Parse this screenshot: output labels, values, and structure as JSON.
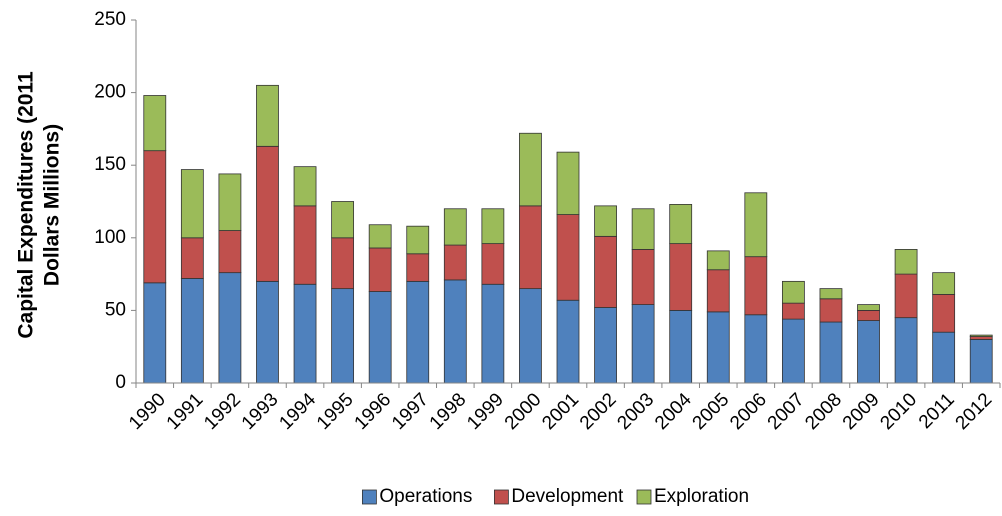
{
  "chart_data": {
    "type": "stacked_bar",
    "ylabel": [
      "Capital Expenditures (2011",
      "Dollars Millions)"
    ],
    "categories": [
      "1990",
      "1991",
      "1992",
      "1993",
      "1994",
      "1995",
      "1996",
      "1997",
      "1998",
      "1999",
      "2000",
      "2001",
      "2002",
      "2003",
      "2004",
      "2005",
      "2006",
      "2007",
      "2008",
      "2009",
      "2010",
      "2011",
      "2012"
    ],
    "series": [
      {
        "name": "Operations",
        "color": "#4f81bd",
        "values": [
          69,
          72,
          76,
          70,
          68,
          65,
          63,
          70,
          71,
          68,
          65,
          57,
          52,
          54,
          50,
          49,
          47,
          44,
          42,
          43,
          45,
          35,
          30
        ]
      },
      {
        "name": "Development",
        "color": "#c0504d",
        "values": [
          91,
          28,
          29,
          93,
          54,
          35,
          30,
          19,
          24,
          28,
          57,
          59,
          49,
          38,
          46,
          29,
          40,
          11,
          16,
          7,
          30,
          26,
          2
        ]
      },
      {
        "name": "Exploration",
        "color": "#9bbb59",
        "values": [
          38,
          47,
          39,
          42,
          27,
          25,
          16,
          19,
          25,
          24,
          50,
          43,
          21,
          28,
          27,
          13,
          44,
          15,
          7,
          4,
          17,
          15,
          1
        ]
      }
    ],
    "ylim": [
      0,
      250
    ],
    "yticks": [
      0,
      50,
      100,
      150,
      200,
      250
    ],
    "legend": "bottom"
  }
}
